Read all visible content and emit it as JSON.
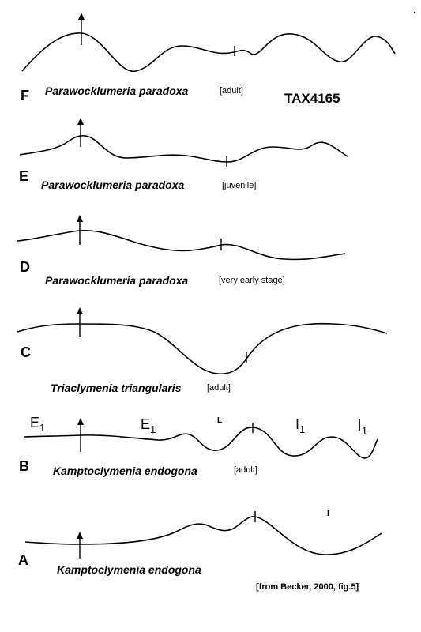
{
  "figure_code": "TAX4165",
  "citation": "[from Becker, 2000, fig.5]",
  "panels": [
    {
      "letter": "F",
      "species": "Parawocklumeria paradoxa",
      "stage": "[adult]"
    },
    {
      "letter": "E",
      "species": "Parawocklumeria paradoxa",
      "stage": "[juvenile]"
    },
    {
      "letter": "D",
      "species": "Parawocklumeria paradoxa",
      "stage": "[very early stage]"
    },
    {
      "letter": "C",
      "species": "Triaclymenia triangularis",
      "stage": "[adult]"
    },
    {
      "letter": "B",
      "species": "Kamptoclymenia endogona",
      "stage": "[adult]"
    },
    {
      "letter": "A",
      "species": "Kamptoclymenia endogona",
      "stage": ""
    }
  ],
  "lobe_labels": {
    "e1_left": {
      "main": "E",
      "sub": "1"
    },
    "e1_right": {
      "main": "E",
      "sub": "1"
    },
    "l": "L",
    "i1_left": {
      "main": "I",
      "sub": "1"
    },
    "i1_right": {
      "main": "I",
      "sub": "1"
    },
    "i_small": "I"
  }
}
